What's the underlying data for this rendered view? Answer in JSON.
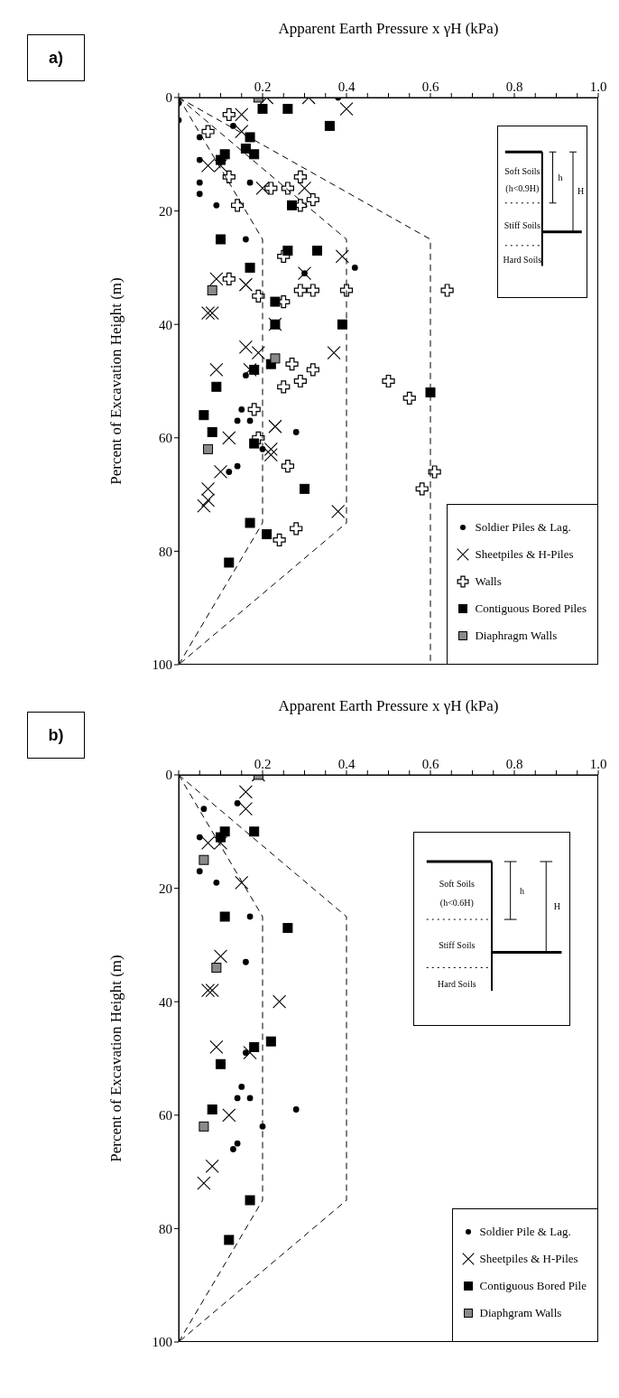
{
  "chart_data": [
    {
      "type": "scatter",
      "title": "a)",
      "xlabel": "Apparent Earth Pressure x γH (kPa)",
      "ylabel": "Percent of Excavation Height (m)",
      "xlim": [
        0,
        1
      ],
      "ylim": [
        100,
        0
      ],
      "xticks": [
        {
          "value": 0,
          "label": null
        },
        {
          "value": 0.05,
          "label": null
        },
        {
          "value": 0.1,
          "label": null
        },
        {
          "value": 0.15,
          "label": null
        },
        {
          "value": 0.2,
          "label": "0.2"
        },
        {
          "value": 0.25,
          "label": null
        },
        {
          "value": 0.3,
          "label": null
        },
        {
          "value": 0.35,
          "label": null
        },
        {
          "value": 0.4,
          "label": "0.4"
        },
        {
          "value": 0.45,
          "label": null
        },
        {
          "value": 0.5,
          "label": null
        },
        {
          "value": 0.55,
          "label": null
        },
        {
          "value": 0.6,
          "label": "0.6"
        },
        {
          "value": 0.65,
          "label": null
        },
        {
          "value": 0.7,
          "label": null
        },
        {
          "value": 0.75,
          "label": null
        },
        {
          "value": 0.8,
          "label": "0.8"
        },
        {
          "value": 0.85,
          "label": null
        },
        {
          "value": 0.9,
          "label": null
        },
        {
          "value": 0.95,
          "label": null
        },
        {
          "value": 1,
          "label": "1.0"
        }
      ],
      "yticks": [
        0,
        20,
        40,
        60,
        80,
        100
      ],
      "legend": "bottom right",
      "annotations": [
        "Soft Soils",
        "(h<0.9H)",
        "Stiff Soils",
        "Hard Soils",
        "h",
        "H"
      ],
      "series": [
        {
          "name": "Soldier Piles & Lag.",
          "marker": "circle",
          "color": "#000000",
          "x": [
            0,
            0,
            0.38,
            0.05,
            0.13,
            0.05,
            0.05,
            0.05,
            0.09,
            0.17,
            0.16,
            0.3,
            0.42,
            0.16,
            0.15,
            0.14,
            0.17,
            0.28,
            0.2,
            0.12,
            0.14
          ],
          "values": [
            1,
            4,
            0,
            7,
            5,
            11,
            15,
            17,
            19,
            15,
            25,
            31,
            30,
            49,
            55,
            57,
            57,
            59,
            62,
            66,
            65
          ]
        },
        {
          "name": "Sheetpiles & H-Piles",
          "marker": "cross",
          "color": "#000000",
          "x": [
            0.21,
            0.31,
            0.4,
            0.15,
            0.15,
            0.07,
            0.1,
            0.2,
            0.3,
            0.39,
            0.3,
            0.09,
            0.16,
            0.07,
            0.08,
            0.23,
            0.16,
            0.19,
            0.37,
            0.09,
            0.17,
            0.12,
            0.23,
            0.22,
            0.22,
            0.1,
            0.07,
            0.07,
            0.06,
            0.38
          ],
          "values": [
            0,
            0,
            2,
            3,
            6,
            12,
            12,
            16,
            16,
            28,
            31,
            32,
            33,
            38,
            38,
            40,
            44,
            45,
            45,
            48,
            48,
            60,
            58,
            62,
            63,
            66,
            69,
            71,
            72,
            73
          ]
        },
        {
          "name": "Walls",
          "marker": "cross",
          "color": "#ffffff",
          "x": [
            0.12,
            0.07,
            0.12,
            0.29,
            0.22,
            0.26,
            0.32,
            0.29,
            0.14,
            0.25,
            0.12,
            0.29,
            0.32,
            0.4,
            0.64,
            0.19,
            0.25,
            0.27,
            0.32,
            0.5,
            0.29,
            0.25,
            0.55,
            0.18,
            0.19,
            0.26,
            0.61,
            0.58,
            0.28,
            0.24
          ],
          "values": [
            3,
            6,
            14,
            14,
            16,
            16,
            18,
            19,
            19,
            28,
            32,
            34,
            34,
            34,
            34,
            35,
            36,
            47,
            48,
            50,
            50,
            51,
            53,
            55,
            60,
            65,
            66,
            69,
            76,
            78
          ]
        },
        {
          "name": "Contiguous Bored Piles",
          "marker": "square",
          "color": "#000000",
          "x": [
            0.2,
            0.26,
            0.36,
            0.17,
            0.16,
            0.18,
            0.11,
            0.1,
            0.27,
            0.1,
            0.26,
            0.33,
            0.17,
            0.23,
            0.23,
            0.39,
            0.22,
            0.18,
            0.09,
            0.6,
            0.06,
            0.08,
            0.18,
            0.3,
            0.17,
            0.21,
            0.12
          ],
          "values": [
            2,
            2,
            5,
            7,
            9,
            10,
            10,
            11,
            19,
            25,
            27,
            27,
            30,
            36,
            40,
            40,
            47,
            48,
            51,
            52,
            56,
            59,
            61,
            69,
            75,
            77,
            82
          ]
        },
        {
          "name": "Diaphragm Walls",
          "marker": "square",
          "color": "#8a8a8a",
          "x": [
            0.19,
            0.08,
            0.23,
            0.07
          ],
          "values": [
            0,
            34,
            46,
            62
          ]
        },
        {
          "type": "line",
          "marker": "none",
          "line_style": "dashed",
          "color": "#000000",
          "x": [
            0,
            0.2,
            0.2,
            0
          ],
          "values": [
            0,
            25,
            75,
            100
          ]
        },
        {
          "type": "line",
          "marker": "none",
          "line_style": "dashed",
          "color": "#000000",
          "x": [
            0,
            0.4,
            0.4,
            0
          ],
          "values": [
            0,
            25,
            75,
            100
          ]
        },
        {
          "type": "line",
          "marker": "none",
          "line_style": "dashed",
          "color": "#000000",
          "x": [
            0,
            0.6,
            0.6
          ],
          "values": [
            0,
            25,
            100
          ]
        }
      ]
    },
    {
      "type": "scatter",
      "title": "b)",
      "xlabel": "Apparent Earth Pressure x γH (kPa)",
      "ylabel": "Percent of Excavation Height (m)",
      "xlim": [
        0,
        1
      ],
      "ylim": [
        100,
        0
      ],
      "xticks": [
        {
          "value": 0,
          "label": null
        },
        {
          "value": 0.05,
          "label": null
        },
        {
          "value": 0.1,
          "label": null
        },
        {
          "value": 0.15,
          "label": null
        },
        {
          "value": 0.2,
          "label": "0.2"
        },
        {
          "value": 0.25,
          "label": null
        },
        {
          "value": 0.3,
          "label": null
        },
        {
          "value": 0.35,
          "label": null
        },
        {
          "value": 0.4,
          "label": "0.4"
        },
        {
          "value": 0.45,
          "label": null
        },
        {
          "value": 0.5,
          "label": null
        },
        {
          "value": 0.55,
          "label": null
        },
        {
          "value": 0.6,
          "label": "0.6"
        },
        {
          "value": 0.65,
          "label": null
        },
        {
          "value": 0.7,
          "label": null
        },
        {
          "value": 0.75,
          "label": null
        },
        {
          "value": 0.8,
          "label": "0.8"
        },
        {
          "value": 0.85,
          "label": null
        },
        {
          "value": 0.9,
          "label": null
        },
        {
          "value": 0.95,
          "label": null
        },
        {
          "value": 1,
          "label": "1.0"
        }
      ],
      "yticks": [
        0,
        20,
        40,
        60,
        80,
        100
      ],
      "legend": "bottom right",
      "annotations": [
        "Soft Soils",
        "(h<0.6H)",
        "Stiff Soils",
        "Hard Soils",
        "h",
        "H"
      ],
      "series": [
        {
          "name": "Soldier Pile & Lag.",
          "marker": "circle",
          "color": "#000000",
          "x": [
            0.06,
            0.14,
            0.05,
            0.05,
            0.09,
            0.17,
            0.16,
            0.16,
            0.15,
            0.14,
            0.17,
            0.28,
            0.2,
            0.14,
            0.13
          ],
          "values": [
            6,
            5,
            11,
            17,
            19,
            25,
            33,
            49,
            55,
            57,
            57,
            59,
            62,
            65,
            66
          ]
        },
        {
          "name": "Sheetpiles & H-Piles",
          "marker": "cross",
          "color": "#000000",
          "x": [
            0.19,
            0.16,
            0.16,
            0.07,
            0.1,
            0.15,
            0.1,
            0.07,
            0.08,
            0.24,
            0.09,
            0.17,
            0.12,
            0.08,
            0.06
          ],
          "values": [
            0,
            3,
            6,
            12,
            12,
            19,
            32,
            38,
            38,
            40,
            48,
            49,
            60,
            69,
            72
          ]
        },
        {
          "name": "Contiguous Bored Pile",
          "marker": "square",
          "color": "#000000",
          "x": [
            0.11,
            0.18,
            0.1,
            0.11,
            0.26,
            0.22,
            0.18,
            0.1,
            0.08,
            0.17,
            0.12
          ],
          "values": [
            10,
            10,
            11,
            25,
            27,
            47,
            48,
            51,
            59,
            75,
            82
          ]
        },
        {
          "name": "Diaphgram Walls",
          "marker": "square",
          "color": "#8a8a8a",
          "x": [
            0.19,
            0.06,
            0.09,
            0.06
          ],
          "values": [
            0,
            15,
            34,
            62
          ]
        },
        {
          "type": "line",
          "marker": "none",
          "line_style": "dashed",
          "color": "#000000",
          "x": [
            0,
            0.2,
            0.2,
            0
          ],
          "values": [
            0,
            25,
            75,
            100
          ]
        },
        {
          "type": "line",
          "marker": "none",
          "line_style": "dashed",
          "color": "#000000",
          "x": [
            0,
            0.4,
            0.4,
            0
          ],
          "values": [
            0,
            25,
            75,
            100
          ]
        }
      ]
    }
  ]
}
